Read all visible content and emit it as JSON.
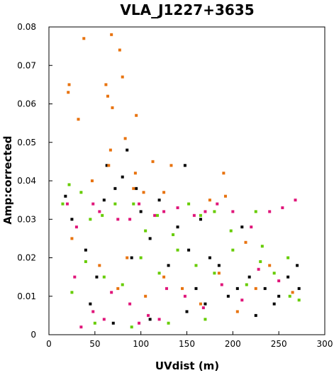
{
  "chart_data": {
    "type": "scatter",
    "title": "VLA_J1227+3635",
    "xlabel": "UVdist (m)",
    "ylabel": "Amp:corrected",
    "xlim": [
      0,
      300
    ],
    "ylim": [
      0,
      0.08
    ],
    "x_ticks": [
      0,
      50,
      100,
      150,
      200,
      250,
      300
    ],
    "y_ticks": [
      0,
      0.01,
      0.02,
      0.03,
      0.04,
      0.05,
      0.06,
      0.07,
      0.08
    ],
    "x_tick_labels": [
      "0",
      "50",
      "100",
      "150",
      "200",
      "250",
      "300"
    ],
    "y_tick_labels": [
      "0",
      "0.01",
      "0.02",
      "0.03",
      "0.04",
      "0.05",
      "0.06",
      "0.07",
      "0.08"
    ],
    "grid": false,
    "legend": "none",
    "series": [
      {
        "color": "#000000",
        "points": [
          [
            18,
            0.036
          ],
          [
            25,
            0.03
          ],
          [
            40,
            0.022
          ],
          [
            52,
            0.015
          ],
          [
            60,
            0.035
          ],
          [
            63,
            0.044
          ],
          [
            72,
            0.038
          ],
          [
            80,
            0.041
          ],
          [
            85,
            0.048
          ],
          [
            90,
            0.02
          ],
          [
            95,
            0.038
          ],
          [
            100,
            0.032
          ],
          [
            110,
            0.025
          ],
          [
            120,
            0.035
          ],
          [
            130,
            0.018
          ],
          [
            140,
            0.028
          ],
          [
            148,
            0.044
          ],
          [
            152,
            0.022
          ],
          [
            160,
            0.012
          ],
          [
            165,
            0.03
          ],
          [
            170,
            0.008
          ],
          [
            175,
            0.02
          ],
          [
            185,
            0.018
          ],
          [
            195,
            0.01
          ],
          [
            205,
            0.012
          ],
          [
            210,
            0.028
          ],
          [
            218,
            0.015
          ],
          [
            225,
            0.005
          ],
          [
            235,
            0.012
          ],
          [
            245,
            0.008
          ],
          [
            250,
            0.01
          ],
          [
            260,
            0.015
          ],
          [
            270,
            0.018
          ],
          [
            272,
            0.012
          ],
          [
            45,
            0.008
          ],
          [
            70,
            0.003
          ],
          [
            110,
            0.004
          ],
          [
            150,
            0.006
          ]
        ]
      },
      {
        "color": "#e8730f",
        "points": [
          [
            22,
            0.065
          ],
          [
            21,
            0.063
          ],
          [
            32,
            0.056
          ],
          [
            38,
            0.077
          ],
          [
            47,
            0.04
          ],
          [
            62,
            0.065
          ],
          [
            64,
            0.062
          ],
          [
            65,
            0.044
          ],
          [
            67,
            0.048
          ],
          [
            68,
            0.078
          ],
          [
            69,
            0.059
          ],
          [
            77,
            0.074
          ],
          [
            80,
            0.067
          ],
          [
            83,
            0.051
          ],
          [
            92,
            0.038
          ],
          [
            94,
            0.042
          ],
          [
            95,
            0.057
          ],
          [
            103,
            0.037
          ],
          [
            113,
            0.045
          ],
          [
            125,
            0.037
          ],
          [
            133,
            0.044
          ],
          [
            175,
            0.035
          ],
          [
            190,
            0.042
          ],
          [
            192,
            0.036
          ],
          [
            214,
            0.024
          ],
          [
            25,
            0.025
          ],
          [
            55,
            0.018
          ],
          [
            75,
            0.012
          ],
          [
            85,
            0.02
          ],
          [
            105,
            0.01
          ],
          [
            125,
            0.015
          ],
          [
            145,
            0.012
          ],
          [
            165,
            0.008
          ],
          [
            185,
            0.016
          ],
          [
            205,
            0.006
          ],
          [
            225,
            0.012
          ],
          [
            240,
            0.018
          ],
          [
            265,
            0.011
          ]
        ]
      },
      {
        "color": "#e0167a",
        "points": [
          [
            20,
            0.034
          ],
          [
            30,
            0.028
          ],
          [
            48,
            0.034
          ],
          [
            55,
            0.032
          ],
          [
            75,
            0.03
          ],
          [
            88,
            0.03
          ],
          [
            98,
            0.034
          ],
          [
            115,
            0.031
          ],
          [
            125,
            0.032
          ],
          [
            140,
            0.033
          ],
          [
            158,
            0.031
          ],
          [
            170,
            0.032
          ],
          [
            183,
            0.034
          ],
          [
            200,
            0.032
          ],
          [
            220,
            0.028
          ],
          [
            240,
            0.032
          ],
          [
            254,
            0.033
          ],
          [
            268,
            0.035
          ],
          [
            250,
            0.014
          ],
          [
            228,
            0.017
          ],
          [
            210,
            0.009
          ],
          [
            188,
            0.013
          ],
          [
            168,
            0.007
          ],
          [
            148,
            0.01
          ],
          [
            128,
            0.012
          ],
          [
            108,
            0.005
          ],
          [
            88,
            0.008
          ],
          [
            68,
            0.011
          ],
          [
            48,
            0.006
          ],
          [
            28,
            0.015
          ],
          [
            35,
            0.002
          ],
          [
            60,
            0.004
          ],
          [
            98,
            0.003
          ],
          [
            120,
            0.004
          ]
        ]
      },
      {
        "color": "#66cc00",
        "points": [
          [
            15,
            0.034
          ],
          [
            22,
            0.039
          ],
          [
            35,
            0.037
          ],
          [
            45,
            0.03
          ],
          [
            58,
            0.031
          ],
          [
            72,
            0.034
          ],
          [
            92,
            0.034
          ],
          [
            105,
            0.027
          ],
          [
            118,
            0.031
          ],
          [
            135,
            0.026
          ],
          [
            152,
            0.034
          ],
          [
            165,
            0.031
          ],
          [
            180,
            0.032
          ],
          [
            198,
            0.027
          ],
          [
            225,
            0.032
          ],
          [
            232,
            0.023
          ],
          [
            262,
            0.01
          ],
          [
            272,
            0.009
          ],
          [
            260,
            0.02
          ],
          [
            245,
            0.016
          ],
          [
            230,
            0.019
          ],
          [
            215,
            0.013
          ],
          [
            200,
            0.022
          ],
          [
            180,
            0.016
          ],
          [
            160,
            0.018
          ],
          [
            140,
            0.022
          ],
          [
            120,
            0.016
          ],
          [
            100,
            0.02
          ],
          [
            80,
            0.013
          ],
          [
            60,
            0.015
          ],
          [
            40,
            0.019
          ],
          [
            25,
            0.011
          ],
          [
            50,
            0.003
          ],
          [
            90,
            0.002
          ],
          [
            130,
            0.003
          ],
          [
            170,
            0.004
          ]
        ]
      }
    ]
  }
}
